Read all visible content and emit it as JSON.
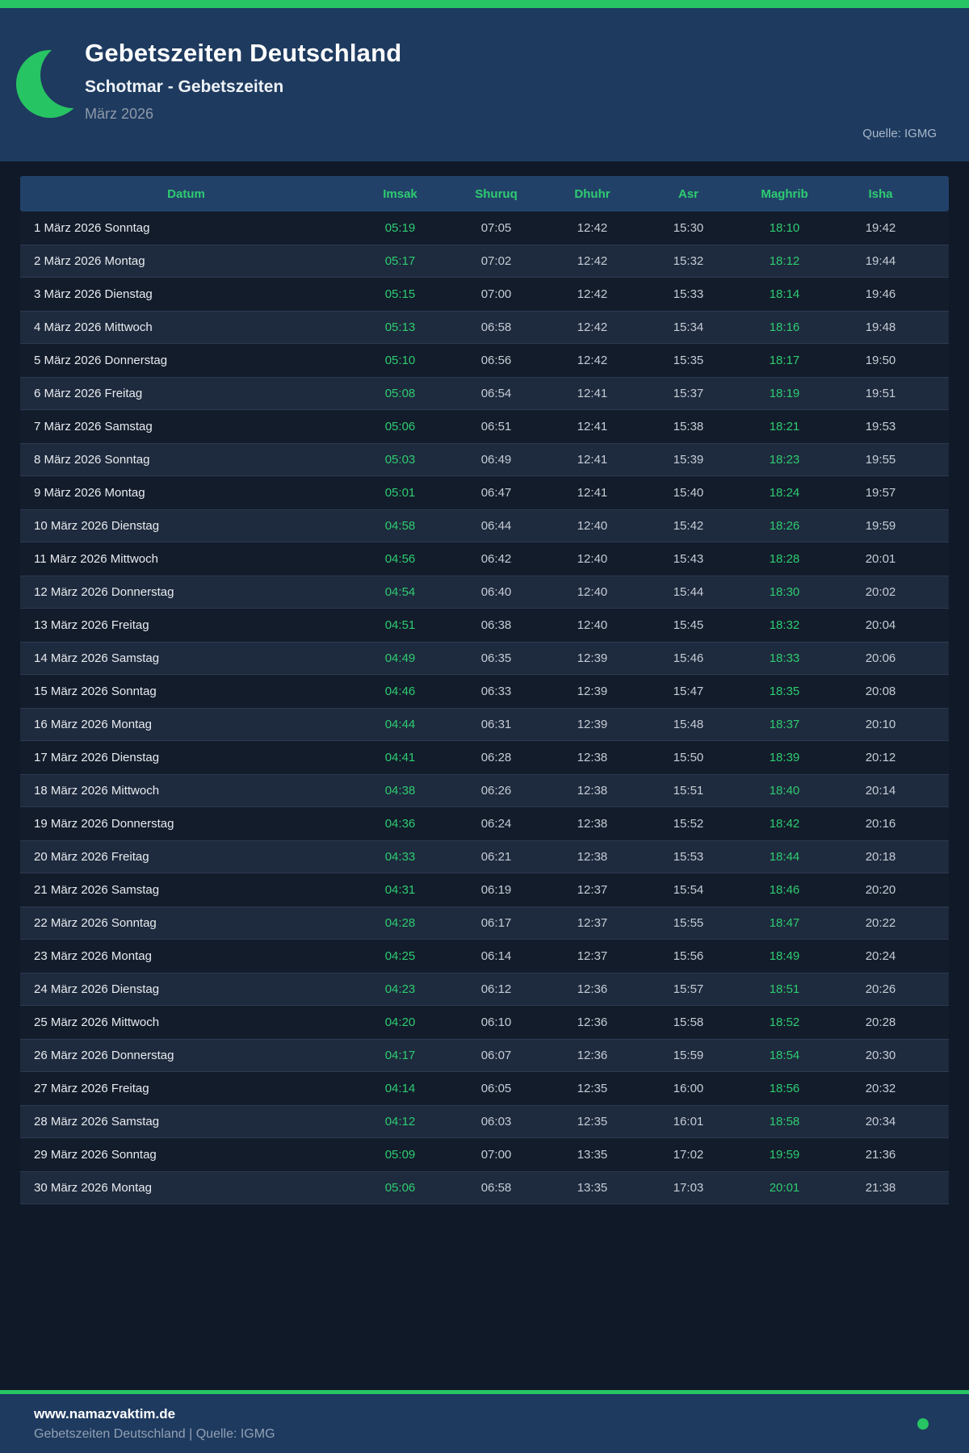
{
  "header": {
    "title": "Gebetszeiten Deutschland",
    "subtitle": "Schotmar - Gebetszeiten",
    "month": "März 2026",
    "source": "Quelle: IGMG"
  },
  "table": {
    "columns": [
      "Datum",
      "Imsak",
      "Shuruq",
      "Dhuhr",
      "Asr",
      "Maghrib",
      "Isha"
    ],
    "highlight_columns": [
      "Imsak",
      "Maghrib"
    ],
    "rows": [
      {
        "date": "1 März 2026 Sonntag",
        "times": [
          "05:19",
          "07:05",
          "12:42",
          "15:30",
          "18:10",
          "19:42"
        ]
      },
      {
        "date": "2 März 2026 Montag",
        "times": [
          "05:17",
          "07:02",
          "12:42",
          "15:32",
          "18:12",
          "19:44"
        ]
      },
      {
        "date": "3 März 2026 Dienstag",
        "times": [
          "05:15",
          "07:00",
          "12:42",
          "15:33",
          "18:14",
          "19:46"
        ]
      },
      {
        "date": "4 März 2026 Mittwoch",
        "times": [
          "05:13",
          "06:58",
          "12:42",
          "15:34",
          "18:16",
          "19:48"
        ]
      },
      {
        "date": "5 März 2026 Donnerstag",
        "times": [
          "05:10",
          "06:56",
          "12:42",
          "15:35",
          "18:17",
          "19:50"
        ]
      },
      {
        "date": "6 März 2026 Freitag",
        "times": [
          "05:08",
          "06:54",
          "12:41",
          "15:37",
          "18:19",
          "19:51"
        ]
      },
      {
        "date": "7 März 2026 Samstag",
        "times": [
          "05:06",
          "06:51",
          "12:41",
          "15:38",
          "18:21",
          "19:53"
        ]
      },
      {
        "date": "8 März 2026 Sonntag",
        "times": [
          "05:03",
          "06:49",
          "12:41",
          "15:39",
          "18:23",
          "19:55"
        ]
      },
      {
        "date": "9 März 2026 Montag",
        "times": [
          "05:01",
          "06:47",
          "12:41",
          "15:40",
          "18:24",
          "19:57"
        ]
      },
      {
        "date": "10 März 2026 Dienstag",
        "times": [
          "04:58",
          "06:44",
          "12:40",
          "15:42",
          "18:26",
          "19:59"
        ]
      },
      {
        "date": "11 März 2026 Mittwoch",
        "times": [
          "04:56",
          "06:42",
          "12:40",
          "15:43",
          "18:28",
          "20:01"
        ]
      },
      {
        "date": "12 März 2026 Donnerstag",
        "times": [
          "04:54",
          "06:40",
          "12:40",
          "15:44",
          "18:30",
          "20:02"
        ]
      },
      {
        "date": "13 März 2026 Freitag",
        "times": [
          "04:51",
          "06:38",
          "12:40",
          "15:45",
          "18:32",
          "20:04"
        ]
      },
      {
        "date": "14 März 2026 Samstag",
        "times": [
          "04:49",
          "06:35",
          "12:39",
          "15:46",
          "18:33",
          "20:06"
        ]
      },
      {
        "date": "15 März 2026 Sonntag",
        "times": [
          "04:46",
          "06:33",
          "12:39",
          "15:47",
          "18:35",
          "20:08"
        ]
      },
      {
        "date": "16 März 2026 Montag",
        "times": [
          "04:44",
          "06:31",
          "12:39",
          "15:48",
          "18:37",
          "20:10"
        ]
      },
      {
        "date": "17 März 2026 Dienstag",
        "times": [
          "04:41",
          "06:28",
          "12:38",
          "15:50",
          "18:39",
          "20:12"
        ]
      },
      {
        "date": "18 März 2026 Mittwoch",
        "times": [
          "04:38",
          "06:26",
          "12:38",
          "15:51",
          "18:40",
          "20:14"
        ]
      },
      {
        "date": "19 März 2026 Donnerstag",
        "times": [
          "04:36",
          "06:24",
          "12:38",
          "15:52",
          "18:42",
          "20:16"
        ]
      },
      {
        "date": "20 März 2026 Freitag",
        "times": [
          "04:33",
          "06:21",
          "12:38",
          "15:53",
          "18:44",
          "20:18"
        ]
      },
      {
        "date": "21 März 2026 Samstag",
        "times": [
          "04:31",
          "06:19",
          "12:37",
          "15:54",
          "18:46",
          "20:20"
        ]
      },
      {
        "date": "22 März 2026 Sonntag",
        "times": [
          "04:28",
          "06:17",
          "12:37",
          "15:55",
          "18:47",
          "20:22"
        ]
      },
      {
        "date": "23 März 2026 Montag",
        "times": [
          "04:25",
          "06:14",
          "12:37",
          "15:56",
          "18:49",
          "20:24"
        ]
      },
      {
        "date": "24 März 2026 Dienstag",
        "times": [
          "04:23",
          "06:12",
          "12:36",
          "15:57",
          "18:51",
          "20:26"
        ]
      },
      {
        "date": "25 März 2026 Mittwoch",
        "times": [
          "04:20",
          "06:10",
          "12:36",
          "15:58",
          "18:52",
          "20:28"
        ]
      },
      {
        "date": "26 März 2026 Donnerstag",
        "times": [
          "04:17",
          "06:07",
          "12:36",
          "15:59",
          "18:54",
          "20:30"
        ]
      },
      {
        "date": "27 März 2026 Freitag",
        "times": [
          "04:14",
          "06:05",
          "12:35",
          "16:00",
          "18:56",
          "20:32"
        ]
      },
      {
        "date": "28 März 2026 Samstag",
        "times": [
          "04:12",
          "06:03",
          "12:35",
          "16:01",
          "18:58",
          "20:34"
        ]
      },
      {
        "date": "29 März 2026 Sonntag",
        "times": [
          "05:09",
          "07:00",
          "13:35",
          "17:02",
          "19:59",
          "21:36"
        ]
      },
      {
        "date": "30 März 2026 Montag",
        "times": [
          "05:06",
          "06:58",
          "13:35",
          "17:03",
          "20:01",
          "21:38"
        ]
      }
    ]
  },
  "footer": {
    "website": "www.namazvaktim.de",
    "tagline": "Gebetszeiten Deutschland | Quelle: IGMG"
  },
  "colors": {
    "accent_green": "#27c463",
    "text_green": "#2ecc71",
    "header_navy": "#1e3a5f",
    "page_bg": "#0f1927",
    "row_dark": "#131c2b",
    "row_light": "#1e2a3d",
    "table_head_bg": "#224168",
    "time_text": "#c5ccd5",
    "muted_text": "#8e9aa9"
  }
}
